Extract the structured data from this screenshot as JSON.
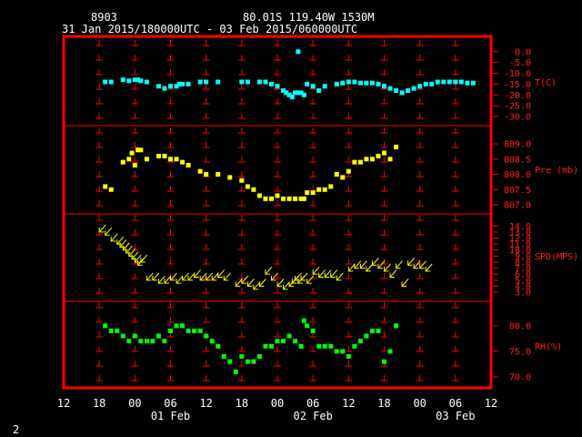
{
  "header": {
    "station_id": "8903",
    "location": "80.01S  119.40W  1530M",
    "time_range": "31 Jan 2015/180000UTC - 03 Feb 2015/060000UTC"
  },
  "footer": {
    "page_number": "2"
  },
  "colors": {
    "frame": "#ff0000",
    "temperature": "#00ffff",
    "pressure": "#ffff00",
    "speed": "#ffff00",
    "humidity": "#00ff00",
    "labels": "#ff2020"
  },
  "x_axis": {
    "hour_ticks": [
      "12",
      "18",
      "00",
      "06",
      "12",
      "18",
      "00",
      "06",
      "12",
      "18",
      "00",
      "06",
      "12"
    ],
    "date_labels": [
      {
        "label": "01 Feb",
        "hour": 30
      },
      {
        "label": "02 Feb",
        "hour": 54
      },
      {
        "label": "03 Feb",
        "hour": 78
      }
    ],
    "range_hours": [
      12,
      84
    ]
  },
  "chart_data": [
    {
      "type": "scatter",
      "series": [
        {
          "name": "T(C)"
        }
      ],
      "ylim": [
        -30,
        2
      ],
      "yticks": [
        "0.0",
        "-5.0",
        "-10.0",
        "-15.0",
        "-20.0",
        "-25.0",
        "-30.0"
      ],
      "ytick_values": [
        0,
        -5,
        -10,
        -15,
        -20,
        -25,
        -30
      ],
      "points": [
        [
          19,
          -14
        ],
        [
          20,
          -14
        ],
        [
          22,
          -13
        ],
        [
          23,
          -13.5
        ],
        [
          24,
          -13
        ],
        [
          24.5,
          -13
        ],
        [
          25,
          -13.5
        ],
        [
          26,
          -14
        ],
        [
          28,
          -16
        ],
        [
          29,
          -17
        ],
        [
          30,
          -16
        ],
        [
          31,
          -16
        ],
        [
          31.5,
          -15
        ],
        [
          32,
          -15
        ],
        [
          33,
          -15
        ],
        [
          35,
          -14
        ],
        [
          36,
          -14
        ],
        [
          38,
          -14
        ],
        [
          42,
          -14
        ],
        [
          43,
          -14
        ],
        [
          45,
          -14
        ],
        [
          46,
          -14
        ],
        [
          47,
          -15
        ],
        [
          48,
          -16
        ],
        [
          49,
          -18
        ],
        [
          49.5,
          -19
        ],
        [
          50,
          -20
        ],
        [
          50.5,
          -21
        ],
        [
          51,
          -19
        ],
        [
          51.5,
          -19
        ],
        [
          52,
          -19
        ],
        [
          52.5,
          -20
        ],
        [
          53,
          -15
        ],
        [
          54,
          -16
        ],
        [
          55,
          -18
        ],
        [
          56,
          -16
        ],
        [
          58,
          -15
        ],
        [
          59,
          -14.5
        ],
        [
          60,
          -14
        ],
        [
          61,
          -14
        ],
        [
          62,
          -14.5
        ],
        [
          63,
          -14.5
        ],
        [
          64,
          -14.5
        ],
        [
          65,
          -15
        ],
        [
          66,
          -16
        ],
        [
          67,
          -17
        ],
        [
          68,
          -18
        ],
        [
          69,
          -19
        ],
        [
          70,
          -18
        ],
        [
          71,
          -17
        ],
        [
          72,
          -16
        ],
        [
          73,
          -15
        ],
        [
          74,
          -15
        ],
        [
          75,
          -14
        ],
        [
          76,
          -14
        ],
        [
          77,
          -14
        ],
        [
          78,
          -14
        ],
        [
          79,
          -14
        ],
        [
          80,
          -14.5
        ],
        [
          81,
          -14.5
        ],
        [
          51.5,
          0
        ]
      ]
    },
    {
      "type": "scatter",
      "series": [
        {
          "name": "Pre (mb)"
        }
      ],
      "ylim": [
        807,
        809.3
      ],
      "yticks": [
        "809.0",
        "808.5",
        "808.0",
        "807.5",
        "807.0"
      ],
      "ytick_values": [
        809,
        808.5,
        808,
        807.5,
        807
      ],
      "points": [
        [
          19,
          807.6
        ],
        [
          20,
          807.5
        ],
        [
          22,
          808.4
        ],
        [
          23,
          808.5
        ],
        [
          23.5,
          808.7
        ],
        [
          24,
          808.3
        ],
        [
          24.5,
          808.8
        ],
        [
          25,
          808.8
        ],
        [
          26,
          808.5
        ],
        [
          28,
          808.6
        ],
        [
          29,
          808.6
        ],
        [
          30,
          808.5
        ],
        [
          31,
          808.5
        ],
        [
          32,
          808.4
        ],
        [
          33,
          808.3
        ],
        [
          35,
          808.1
        ],
        [
          36,
          808.0
        ],
        [
          38,
          808.0
        ],
        [
          40,
          807.9
        ],
        [
          42,
          807.8
        ],
        [
          43,
          807.6
        ],
        [
          44,
          807.5
        ],
        [
          45,
          807.3
        ],
        [
          46,
          807.2
        ],
        [
          47,
          807.2
        ],
        [
          48,
          807.3
        ],
        [
          49,
          807.2
        ],
        [
          50,
          807.2
        ],
        [
          51,
          807.2
        ],
        [
          52,
          807.2
        ],
        [
          52.5,
          807.2
        ],
        [
          53,
          807.4
        ],
        [
          54,
          807.4
        ],
        [
          55,
          807.5
        ],
        [
          56,
          807.5
        ],
        [
          57,
          807.6
        ],
        [
          58,
          808.0
        ],
        [
          59,
          807.9
        ],
        [
          60,
          808.1
        ],
        [
          61,
          808.4
        ],
        [
          62,
          808.4
        ],
        [
          63,
          808.5
        ],
        [
          64,
          808.5
        ],
        [
          65,
          808.6
        ],
        [
          66,
          808.7
        ],
        [
          67,
          808.5
        ],
        [
          68,
          808.9
        ]
      ]
    },
    {
      "type": "scatter",
      "series": [
        {
          "name": "SPD(MPS)"
        }
      ],
      "ylim": [
        3,
        14.5
      ],
      "yticks": [
        "14.0",
        "13.0",
        "12.0",
        "11.0",
        "10.0",
        "9.0",
        "8.0",
        "7.0",
        "6.0",
        "5.0",
        "4.0",
        "3.0"
      ],
      "ytick_values": [
        14,
        13,
        12,
        11,
        10,
        9,
        8,
        7,
        6,
        5,
        4,
        3
      ],
      "points": [
        [
          18,
          13
        ],
        [
          19,
          12.5
        ],
        [
          20,
          11.5
        ],
        [
          21,
          11
        ],
        [
          21.5,
          10.5
        ],
        [
          22,
          10
        ],
        [
          22.5,
          9.5
        ],
        [
          23,
          9
        ],
        [
          23.5,
          8.5
        ],
        [
          24,
          8
        ],
        [
          24.5,
          7.5
        ],
        [
          25,
          8
        ],
        [
          26,
          5
        ],
        [
          27,
          5
        ],
        [
          28,
          4.5
        ],
        [
          29,
          4.5
        ],
        [
          30,
          5
        ],
        [
          31,
          4.5
        ],
        [
          32,
          5
        ],
        [
          33,
          5
        ],
        [
          34,
          5.5
        ],
        [
          35,
          5
        ],
        [
          36,
          5
        ],
        [
          37,
          5
        ],
        [
          38,
          5.5
        ],
        [
          39,
          5
        ],
        [
          41,
          4
        ],
        [
          42,
          4.5
        ],
        [
          43,
          4
        ],
        [
          44,
          3.5
        ],
        [
          45,
          4
        ],
        [
          46,
          6
        ],
        [
          47,
          5
        ],
        [
          48,
          4
        ],
        [
          49,
          3.5
        ],
        [
          50,
          4
        ],
        [
          50.5,
          4.5
        ],
        [
          51,
          5
        ],
        [
          51.5,
          4.5
        ],
        [
          52,
          5
        ],
        [
          53,
          4.5
        ],
        [
          54,
          6
        ],
        [
          55,
          5.5
        ],
        [
          56,
          5.5
        ],
        [
          57,
          5.5
        ],
        [
          58,
          5
        ],
        [
          60,
          6.5
        ],
        [
          61,
          7
        ],
        [
          62,
          7
        ],
        [
          63,
          6.5
        ],
        [
          64,
          7.5
        ],
        [
          65,
          7
        ],
        [
          66,
          6.5
        ],
        [
          67,
          5.5
        ],
        [
          68,
          7
        ],
        [
          69,
          4
        ],
        [
          70,
          7.5
        ],
        [
          71,
          7
        ],
        [
          72,
          7
        ],
        [
          73,
          6.5
        ]
      ]
    },
    {
      "type": "scatter",
      "series": [
        {
          "name": "RH(%)"
        }
      ],
      "ylim": [
        70,
        83
      ],
      "yticks": [
        "80.0",
        "75.0",
        "70.0"
      ],
      "ytick_values": [
        80,
        75,
        70
      ],
      "points": [
        [
          19,
          80
        ],
        [
          20,
          79
        ],
        [
          21,
          79
        ],
        [
          22,
          78
        ],
        [
          23,
          77
        ],
        [
          24,
          78
        ],
        [
          25,
          77
        ],
        [
          26,
          77
        ],
        [
          27,
          77
        ],
        [
          28,
          78
        ],
        [
          29,
          77
        ],
        [
          30,
          79
        ],
        [
          31,
          80
        ],
        [
          32,
          80
        ],
        [
          33,
          79
        ],
        [
          34,
          79
        ],
        [
          35,
          79
        ],
        [
          36,
          78
        ],
        [
          37,
          77
        ],
        [
          38,
          76
        ],
        [
          39,
          74
        ],
        [
          40,
          73
        ],
        [
          41,
          71
        ],
        [
          42,
          74
        ],
        [
          43,
          73
        ],
        [
          44,
          73
        ],
        [
          45,
          74
        ],
        [
          46,
          76
        ],
        [
          47,
          76
        ],
        [
          48,
          77
        ],
        [
          49,
          77
        ],
        [
          50,
          78
        ],
        [
          51,
          77
        ],
        [
          52,
          76
        ],
        [
          52.5,
          81
        ],
        [
          53,
          80
        ],
        [
          54,
          79
        ],
        [
          55,
          76
        ],
        [
          56,
          76
        ],
        [
          57,
          76
        ],
        [
          58,
          75
        ],
        [
          59,
          75
        ],
        [
          60,
          74
        ],
        [
          61,
          76
        ],
        [
          62,
          77
        ],
        [
          63,
          78
        ],
        [
          64,
          79
        ],
        [
          65,
          79
        ],
        [
          66,
          73
        ],
        [
          67,
          75
        ],
        [
          68,
          80
        ]
      ]
    }
  ]
}
